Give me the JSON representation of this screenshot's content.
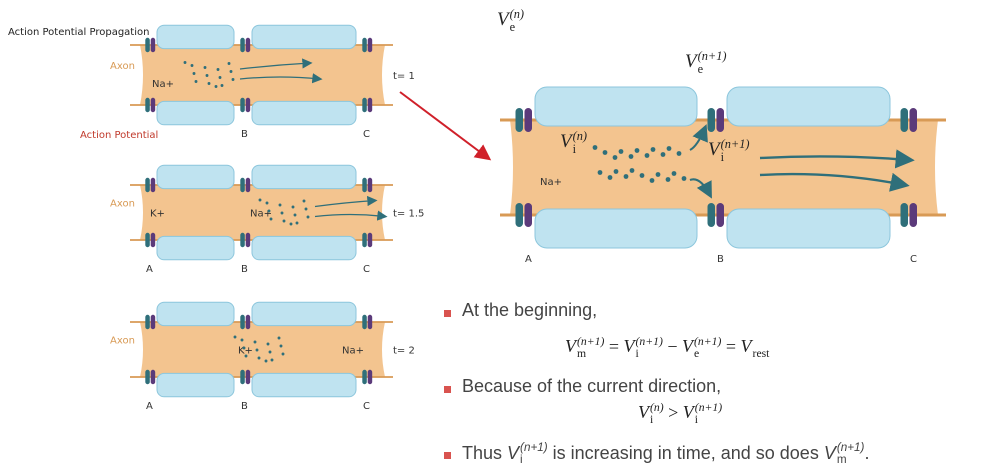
{
  "left_panel": {
    "title": "Action Potential Propagation",
    "action_label": "Action Potential",
    "panels": [
      {
        "axon": "Axon",
        "time": "t= 1",
        "ions": [
          "Na+"
        ],
        "nodes": [
          "B",
          "C"
        ]
      },
      {
        "axon": "Axon",
        "time": "t= 1.5",
        "ions": [
          "K+",
          "Na+"
        ],
        "nodes": [
          "A",
          "B",
          "C"
        ]
      },
      {
        "axon": "Axon",
        "time": "t= 2",
        "ions": [
          "K+",
          "Na+"
        ],
        "nodes": [
          "A",
          "B",
          "C"
        ]
      }
    ]
  },
  "right_panel": {
    "ve_n": [
      {
        "base": "V",
        "sub": "e",
        "sup": "(n)"
      }
    ],
    "ve_n1": [
      {
        "base": "V",
        "sub": "e",
        "sup": "(n+1)"
      }
    ],
    "vi_n": [
      {
        "base": "V",
        "sub": "i",
        "sup": "(n)"
      }
    ],
    "vi_n1": [
      {
        "base": "V",
        "sub": "i",
        "sup": "(n+1)"
      }
    ],
    "ion": "Na+",
    "nodes": [
      "A",
      "B",
      "C"
    ]
  },
  "bullets": [
    {
      "text": [
        "At the beginning,"
      ],
      "equation": [
        {
          "base": "V",
          "sub": "m",
          "sup": "(n+1)"
        },
        " = ",
        {
          "base": "V",
          "sub": "i",
          "sup": "(n+1)"
        },
        " − ",
        {
          "base": "V",
          "sub": "e",
          "sup": "(n+1)"
        },
        " = ",
        {
          "base": "V",
          "sub": "rest"
        }
      ]
    },
    {
      "text": [
        "Because of the current direction,"
      ],
      "equation": [
        {
          "base": "V",
          "sub": "i",
          "sup": "(n)"
        },
        " > ",
        {
          "base": "V",
          "sub": "i",
          "sup": "(n+1)"
        }
      ]
    },
    {
      "text": [
        "Thus ",
        {
          "base": "V",
          "sub": "i",
          "sup": "(n+1)"
        },
        " is increasing in time, and so does ",
        {
          "base": "V",
          "sub": "m",
          "sup": "(n+1)"
        },
        "."
      ]
    }
  ]
}
